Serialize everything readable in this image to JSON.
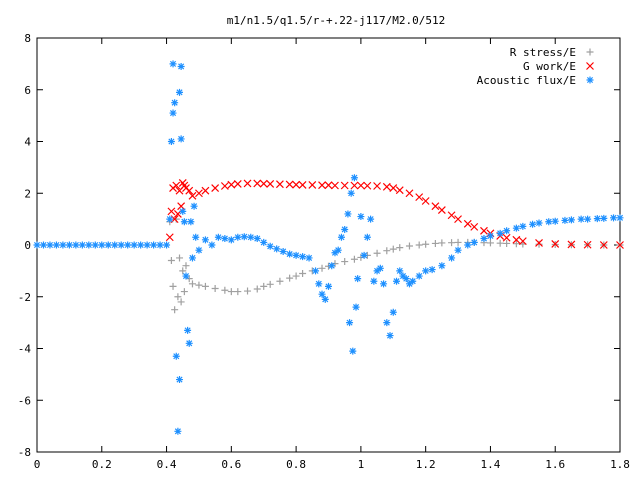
{
  "chart_data": {
    "type": "scatter",
    "title": "m1/n1.5/q1.5/r-+.22-j117/M2.0/512",
    "xlabel": "",
    "ylabel": "",
    "xlim": [
      0,
      1.8
    ],
    "ylim": [
      -8,
      8
    ],
    "x_ticks": [
      "0",
      "0.2",
      "0.4",
      "0.6",
      "0.8",
      "1",
      "1.2",
      "1.4",
      "1.6",
      "1.8"
    ],
    "y_ticks": [
      "-8",
      "-6",
      "-4",
      "-2",
      "0",
      "2",
      "4",
      "6",
      "8"
    ],
    "grid": false,
    "legend_position": "top-right",
    "series": [
      {
        "name": "R stress/E",
        "marker": "plus",
        "color": "#a0a0a0",
        "points": [
          [
            0.41,
            0.9
          ],
          [
            0.415,
            -0.6
          ],
          [
            0.42,
            -1.6
          ],
          [
            0.425,
            -2.5
          ],
          [
            0.43,
            1.0
          ],
          [
            0.435,
            -2.0
          ],
          [
            0.44,
            -0.5
          ],
          [
            0.445,
            -2.2
          ],
          [
            0.45,
            -1.0
          ],
          [
            0.455,
            -1.8
          ],
          [
            0.46,
            -0.8
          ],
          [
            0.47,
            -1.3
          ],
          [
            0.48,
            -1.5
          ],
          [
            0.5,
            -1.55
          ],
          [
            0.52,
            -1.6
          ],
          [
            0.55,
            -1.68
          ],
          [
            0.58,
            -1.75
          ],
          [
            0.6,
            -1.8
          ],
          [
            0.62,
            -1.8
          ],
          [
            0.65,
            -1.78
          ],
          [
            0.68,
            -1.7
          ],
          [
            0.7,
            -1.6
          ],
          [
            0.72,
            -1.52
          ],
          [
            0.75,
            -1.4
          ],
          [
            0.78,
            -1.28
          ],
          [
            0.8,
            -1.2
          ],
          [
            0.82,
            -1.1
          ],
          [
            0.85,
            -1.0
          ],
          [
            0.88,
            -0.9
          ],
          [
            0.9,
            -0.82
          ],
          [
            0.92,
            -0.72
          ],
          [
            0.95,
            -0.64
          ],
          [
            0.98,
            -0.55
          ],
          [
            1.0,
            -0.48
          ],
          [
            1.02,
            -0.4
          ],
          [
            1.05,
            -0.32
          ],
          [
            1.08,
            -0.22
          ],
          [
            1.1,
            -0.16
          ],
          [
            1.12,
            -0.1
          ],
          [
            1.15,
            -0.04
          ],
          [
            1.18,
            0.0
          ],
          [
            1.2,
            0.03
          ],
          [
            1.23,
            0.06
          ],
          [
            1.25,
            0.08
          ],
          [
            1.28,
            0.09
          ],
          [
            1.3,
            0.1
          ],
          [
            1.33,
            0.1
          ],
          [
            1.35,
            0.1
          ],
          [
            1.38,
            0.09
          ],
          [
            1.4,
            0.08
          ],
          [
            1.43,
            0.07
          ],
          [
            1.45,
            0.06
          ],
          [
            1.48,
            0.05
          ],
          [
            1.5,
            0.04
          ],
          [
            1.55,
            0.03
          ],
          [
            1.6,
            0.02
          ],
          [
            1.65,
            0.01
          ],
          [
            1.7,
            0.01
          ],
          [
            1.75,
            0.0
          ],
          [
            1.8,
            0.0
          ]
        ]
      },
      {
        "name": "G work/E",
        "marker": "cross",
        "color": "#ff0000",
        "points": [
          [
            0.41,
            0.3
          ],
          [
            0.415,
            1.3
          ],
          [
            0.42,
            2.2
          ],
          [
            0.425,
            1.0
          ],
          [
            0.43,
            2.3
          ],
          [
            0.435,
            1.2
          ],
          [
            0.44,
            2.1
          ],
          [
            0.445,
            1.5
          ],
          [
            0.45,
            2.4
          ],
          [
            0.455,
            2.3
          ],
          [
            0.46,
            2.2
          ],
          [
            0.47,
            2.1
          ],
          [
            0.48,
            1.9
          ],
          [
            0.5,
            2.0
          ],
          [
            0.52,
            2.1
          ],
          [
            0.55,
            2.2
          ],
          [
            0.58,
            2.28
          ],
          [
            0.6,
            2.33
          ],
          [
            0.62,
            2.36
          ],
          [
            0.65,
            2.38
          ],
          [
            0.68,
            2.38
          ],
          [
            0.7,
            2.37
          ],
          [
            0.72,
            2.36
          ],
          [
            0.75,
            2.35
          ],
          [
            0.78,
            2.34
          ],
          [
            0.8,
            2.33
          ],
          [
            0.82,
            2.32
          ],
          [
            0.85,
            2.32
          ],
          [
            0.88,
            2.31
          ],
          [
            0.9,
            2.31
          ],
          [
            0.92,
            2.3
          ],
          [
            0.95,
            2.3
          ],
          [
            0.98,
            2.3
          ],
          [
            1.0,
            2.3
          ],
          [
            1.02,
            2.29
          ],
          [
            1.05,
            2.28
          ],
          [
            1.08,
            2.25
          ],
          [
            1.1,
            2.2
          ],
          [
            1.12,
            2.12
          ],
          [
            1.15,
            2.0
          ],
          [
            1.18,
            1.85
          ],
          [
            1.2,
            1.7
          ],
          [
            1.23,
            1.5
          ],
          [
            1.25,
            1.35
          ],
          [
            1.28,
            1.15
          ],
          [
            1.3,
            1.0
          ],
          [
            1.33,
            0.82
          ],
          [
            1.35,
            0.7
          ],
          [
            1.38,
            0.55
          ],
          [
            1.4,
            0.45
          ],
          [
            1.43,
            0.35
          ],
          [
            1.45,
            0.28
          ],
          [
            1.48,
            0.2
          ],
          [
            1.5,
            0.15
          ],
          [
            1.55,
            0.08
          ],
          [
            1.6,
            0.04
          ],
          [
            1.65,
            0.02
          ],
          [
            1.7,
            0.01
          ],
          [
            1.75,
            0.0
          ],
          [
            1.8,
            0.0
          ]
        ]
      },
      {
        "name": "Acoustic flux/E",
        "marker": "star",
        "color": "#1e90ff",
        "points": [
          [
            0.0,
            0.0
          ],
          [
            0.02,
            0.0
          ],
          [
            0.04,
            0.0
          ],
          [
            0.06,
            0.0
          ],
          [
            0.08,
            0.0
          ],
          [
            0.1,
            0.0
          ],
          [
            0.12,
            0.0
          ],
          [
            0.14,
            0.0
          ],
          [
            0.16,
            0.0
          ],
          [
            0.18,
            0.0
          ],
          [
            0.2,
            0.0
          ],
          [
            0.22,
            0.0
          ],
          [
            0.24,
            0.0
          ],
          [
            0.26,
            0.0
          ],
          [
            0.28,
            0.0
          ],
          [
            0.3,
            0.0
          ],
          [
            0.32,
            0.0
          ],
          [
            0.34,
            0.0
          ],
          [
            0.36,
            0.0
          ],
          [
            0.38,
            0.0
          ],
          [
            0.4,
            0.0
          ],
          [
            0.41,
            1.0
          ],
          [
            0.415,
            4.0
          ],
          [
            0.42,
            5.1
          ],
          [
            0.42,
            7.0
          ],
          [
            0.425,
            5.5
          ],
          [
            0.43,
            -4.3
          ],
          [
            0.435,
            -7.2
          ],
          [
            0.44,
            -5.2
          ],
          [
            0.44,
            5.9
          ],
          [
            0.445,
            6.9
          ],
          [
            0.445,
            4.1
          ],
          [
            0.45,
            1.3
          ],
          [
            0.455,
            0.9
          ],
          [
            0.46,
            -1.2
          ],
          [
            0.465,
            -3.3
          ],
          [
            0.47,
            -3.8
          ],
          [
            0.475,
            0.9
          ],
          [
            0.48,
            -0.5
          ],
          [
            0.485,
            1.5
          ],
          [
            0.49,
            0.3
          ],
          [
            0.5,
            -0.2
          ],
          [
            0.52,
            0.2
          ],
          [
            0.54,
            0.0
          ],
          [
            0.56,
            0.3
          ],
          [
            0.58,
            0.25
          ],
          [
            0.6,
            0.2
          ],
          [
            0.62,
            0.3
          ],
          [
            0.64,
            0.32
          ],
          [
            0.66,
            0.3
          ],
          [
            0.68,
            0.25
          ],
          [
            0.7,
            0.1
          ],
          [
            0.72,
            -0.05
          ],
          [
            0.74,
            -0.15
          ],
          [
            0.76,
            -0.25
          ],
          [
            0.78,
            -0.35
          ],
          [
            0.8,
            -0.4
          ],
          [
            0.82,
            -0.45
          ],
          [
            0.84,
            -0.5
          ],
          [
            0.86,
            -1.0
          ],
          [
            0.87,
            -1.5
          ],
          [
            0.88,
            -1.9
          ],
          [
            0.89,
            -2.1
          ],
          [
            0.9,
            -1.6
          ],
          [
            0.91,
            -0.8
          ],
          [
            0.92,
            -0.3
          ],
          [
            0.93,
            -0.2
          ],
          [
            0.94,
            0.3
          ],
          [
            0.95,
            0.6
          ],
          [
            0.96,
            1.2
          ],
          [
            0.965,
            -3.0
          ],
          [
            0.97,
            2.0
          ],
          [
            0.975,
            -4.1
          ],
          [
            0.98,
            2.6
          ],
          [
            0.985,
            -2.4
          ],
          [
            0.99,
            -1.3
          ],
          [
            1.0,
            1.1
          ],
          [
            1.01,
            -0.4
          ],
          [
            1.02,
            0.3
          ],
          [
            1.03,
            1.0
          ],
          [
            1.04,
            -1.4
          ],
          [
            1.05,
            -1.0
          ],
          [
            1.06,
            -0.9
          ],
          [
            1.07,
            -1.5
          ],
          [
            1.08,
            -3.0
          ],
          [
            1.09,
            -3.5
          ],
          [
            1.1,
            -2.6
          ],
          [
            1.11,
            -1.4
          ],
          [
            1.12,
            -1.0
          ],
          [
            1.13,
            -1.2
          ],
          [
            1.14,
            -1.3
          ],
          [
            1.15,
            -1.5
          ],
          [
            1.16,
            -1.4
          ],
          [
            1.18,
            -1.2
          ],
          [
            1.2,
            -1.0
          ],
          [
            1.22,
            -0.95
          ],
          [
            1.25,
            -0.8
          ],
          [
            1.28,
            -0.5
          ],
          [
            1.3,
            -0.2
          ],
          [
            1.33,
            0.0
          ],
          [
            1.35,
            0.1
          ],
          [
            1.38,
            0.25
          ],
          [
            1.4,
            0.35
          ],
          [
            1.43,
            0.45
          ],
          [
            1.45,
            0.55
          ],
          [
            1.48,
            0.65
          ],
          [
            1.5,
            0.72
          ],
          [
            1.53,
            0.8
          ],
          [
            1.55,
            0.85
          ],
          [
            1.58,
            0.9
          ],
          [
            1.6,
            0.92
          ],
          [
            1.63,
            0.95
          ],
          [
            1.65,
            0.97
          ],
          [
            1.68,
            1.0
          ],
          [
            1.7,
            1.0
          ],
          [
            1.73,
            1.02
          ],
          [
            1.75,
            1.03
          ],
          [
            1.78,
            1.05
          ],
          [
            1.8,
            1.05
          ]
        ]
      }
    ]
  }
}
